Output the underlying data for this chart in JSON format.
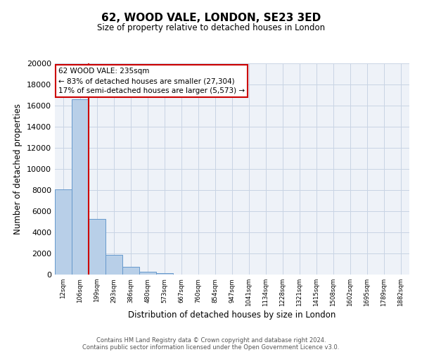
{
  "title": "62, WOOD VALE, LONDON, SE23 3ED",
  "subtitle": "Size of property relative to detached houses in London",
  "xlabel": "Distribution of detached houses by size in London",
  "ylabel": "Number of detached properties",
  "bar_labels": [
    "12sqm",
    "106sqm",
    "199sqm",
    "293sqm",
    "386sqm",
    "480sqm",
    "573sqm",
    "667sqm",
    "760sqm",
    "854sqm",
    "947sqm",
    "1041sqm",
    "1134sqm",
    "1228sqm",
    "1321sqm",
    "1415sqm",
    "1508sqm",
    "1602sqm",
    "1695sqm",
    "1789sqm",
    "1882sqm"
  ],
  "bar_values": [
    8100,
    16600,
    5300,
    1850,
    750,
    300,
    130,
    0,
    0,
    0,
    0,
    0,
    0,
    0,
    0,
    0,
    0,
    0,
    0,
    0,
    0
  ],
  "bar_color": "#b8cfe8",
  "bar_edge_color": "#6699cc",
  "ylim": [
    0,
    20000
  ],
  "yticks": [
    0,
    2000,
    4000,
    6000,
    8000,
    10000,
    12000,
    14000,
    16000,
    18000,
    20000
  ],
  "vline_x_index": 2,
  "vline_color": "#cc0000",
  "annotation_line1": "62 WOOD VALE: 235sqm",
  "annotation_line2": "← 83% of detached houses are smaller (27,304)",
  "annotation_line3": "17% of semi-detached houses are larger (5,573) →",
  "annotation_box_color": "#ffffff",
  "annotation_box_edge": "#cc0000",
  "footer_line1": "Contains HM Land Registry data © Crown copyright and database right 2024.",
  "footer_line2": "Contains public sector information licensed under the Open Government Licence v3.0.",
  "background_color": "#eef2f8",
  "grid_color": "#c8d4e4"
}
